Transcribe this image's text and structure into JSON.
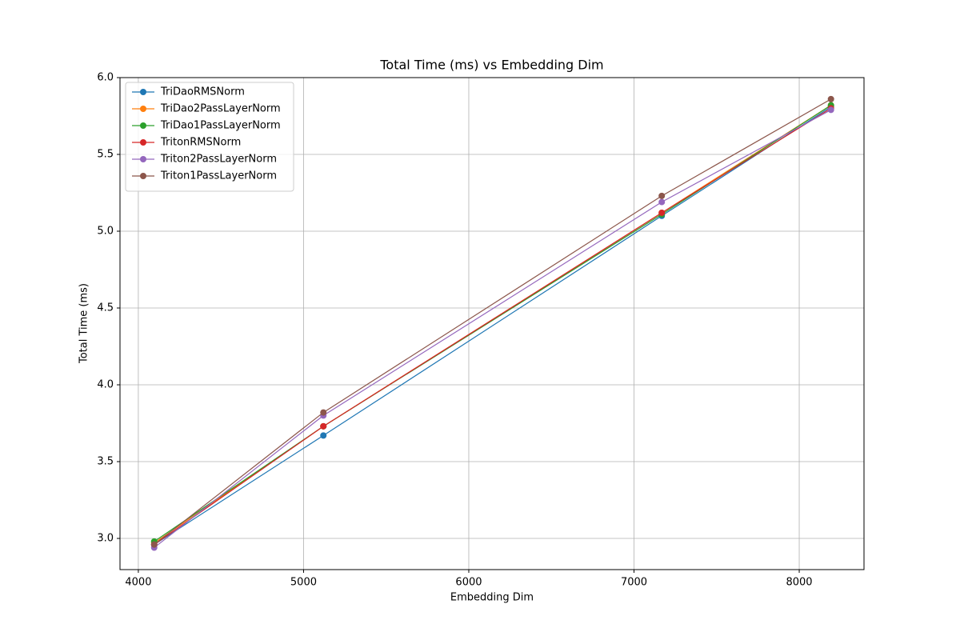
{
  "chart_data": {
    "type": "line",
    "title": "Total Time (ms) vs Embedding Dim",
    "xlabel": "Embedding Dim",
    "ylabel": "Total Time (ms)",
    "x": [
      4096,
      5120,
      7168,
      8192
    ],
    "xlim": [
      3889,
      8392
    ],
    "xticks": [
      4000,
      5000,
      6000,
      7000,
      8000
    ],
    "ylim": [
      2.797,
      6.0
    ],
    "yticks": [
      {
        "value": 3,
        "label": "3.0"
      },
      3.5,
      {
        "value": 4,
        "label": "4.0"
      },
      4.5,
      {
        "value": 5,
        "label": "5.0"
      },
      5.5,
      {
        "value": 6,
        "label": "6.0"
      }
    ],
    "grid": true,
    "legend": "upper-left",
    "series": [
      {
        "name": "TriDaoRMSNorm",
        "color": "#1f77b4",
        "values": [
          2.96,
          3.67,
          5.1,
          5.81
        ]
      },
      {
        "name": "TriDao2PassLayerNorm",
        "color": "#ff7f0e",
        "values": [
          2.97,
          3.73,
          5.12,
          5.82
        ]
      },
      {
        "name": "TriDao1PassLayerNorm",
        "color": "#2ca02c",
        "values": [
          2.98,
          3.73,
          5.11,
          5.82
        ]
      },
      {
        "name": "TritonRMSNorm",
        "color": "#d62728",
        "values": [
          2.96,
          3.73,
          5.12,
          5.8
        ]
      },
      {
        "name": "Triton2PassLayerNorm",
        "color": "#9467bd",
        "values": [
          2.94,
          3.8,
          5.19,
          5.79
        ]
      },
      {
        "name": "Triton1PassLayerNorm",
        "color": "#8c564b",
        "values": [
          2.96,
          3.82,
          5.23,
          5.86
        ]
      }
    ]
  }
}
